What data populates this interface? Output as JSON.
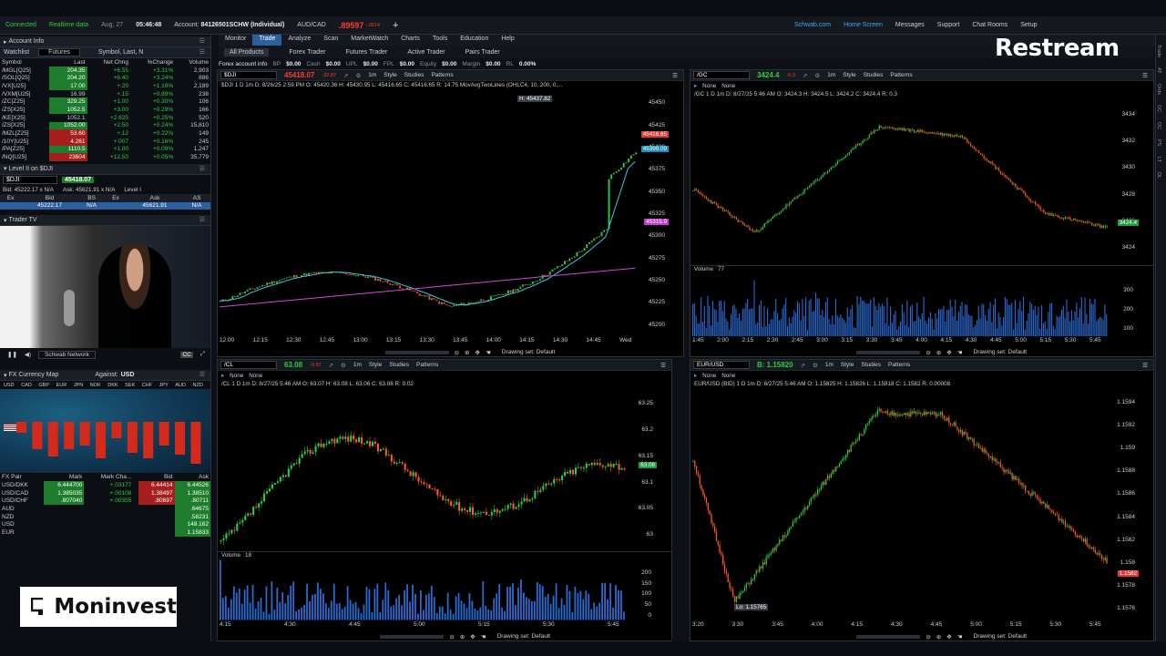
{
  "topbar": {
    "status": "Connected",
    "data_mode": "Realtime data",
    "date": "Aug, 27",
    "time": "05:46:48",
    "account_label": "Account:",
    "account": "84126501SCHW (Individual)",
    "pair": "AUD/CAD",
    "pair_price": ".89597",
    "pair_change": "-.0014",
    "links": [
      "Schwab.com",
      "Home Screen",
      "Messages",
      "Support",
      "Chat Rooms",
      "Setup"
    ],
    "ondemand": "OnDemand"
  },
  "menu": [
    "Monitor",
    "Trade",
    "Analyze",
    "Scan",
    "MarketWatch",
    "Charts",
    "Tools",
    "Education",
    "Help"
  ],
  "menu_active": "Trade",
  "subtabs": [
    "All Products",
    "Forex Trader",
    "Futures Trader",
    "Active Trader",
    "Pairs Trader"
  ],
  "forex_info": {
    "label": "Forex account info",
    "fields": [
      [
        "BP",
        "$0.00"
      ],
      [
        "Cash",
        "$0.00"
      ],
      [
        "UPL",
        "$0.00"
      ],
      [
        "FPL",
        "$0.00"
      ],
      [
        "Equity",
        "$0.00"
      ],
      [
        "Margin",
        "$0.00"
      ],
      [
        "RL",
        "0.00%"
      ]
    ]
  },
  "left": {
    "account_info": "Account Info",
    "watchlist_tab": "Watchlist",
    "watchlist_name": "Futures",
    "symbol_search": "Symbol, Last, N",
    "wl_cols": [
      "Symbol",
      "Last",
      "Net Chng",
      "%Change",
      "Volume"
    ],
    "wl_rows": [
      [
        "/MGL[Q25]",
        "204.35",
        "+6.55",
        "+3.31%",
        "2,903",
        "g"
      ],
      [
        "/SOL[Q25]",
        "204.20",
        "+6.40",
        "+3.24%",
        "886",
        "g"
      ],
      [
        "/VX[U25]",
        "17.00",
        "+.20",
        "+1.19%",
        "2,189",
        "g"
      ],
      [
        "/VXM[U25]",
        "16.99",
        "+.15",
        "+0.89%",
        "238",
        "g"
      ],
      [
        "/ZC[Z25]",
        "329.25",
        "+1.00",
        "+0.30%",
        "106",
        "g"
      ],
      [
        "/ZS[X25]",
        "1052.5",
        "+3.00",
        "+0.29%",
        "166",
        "g"
      ],
      [
        "/KE[X25]",
        "1052.1",
        "+2.625",
        "+0.25%",
        "520",
        "g"
      ],
      [
        "/ZS[X25]",
        "1052.00",
        "+2.50",
        "+0.24%",
        "15,810",
        "g"
      ],
      [
        "/MZL[Z25]",
        "53.60",
        "+.12",
        "+0.22%",
        "149",
        "r"
      ],
      [
        "/10Y[U25]",
        "4.261",
        "+.007",
        "+0.16%",
        "245",
        "r"
      ],
      [
        "/PA[Z25]",
        "1110.5",
        "+1.00",
        "+0.09%",
        "1,247",
        "g"
      ],
      [
        "/NQ[U25]",
        "23604",
        "+12.50",
        "+0.05%",
        "35,779",
        "r"
      ]
    ],
    "level2_title": "Level II on $DJI",
    "l2_symbol": "$DJI",
    "l2_price": "45418.07",
    "l2_bid": "Bid: 45222.17 x N/A",
    "l2_ask": "Ask: 45621.91 x N/A",
    "l2_level": "Level I",
    "l2_cols": [
      "Ex",
      "Bid",
      "BS",
      "Ex",
      "Ask",
      "AS"
    ],
    "l2_row": [
      "",
      "45222.17",
      "N/A",
      "",
      "45621.91",
      "N/A"
    ],
    "tv_title": "Trader TV",
    "tv_network": "Schwab Network",
    "tv_badge": "CC",
    "fx_title": "FX Currency Map",
    "fx_against_label": "Against:",
    "fx_against": "USD",
    "fx_ccy": [
      "USD",
      "CAD",
      "GBP",
      "EUR",
      "JPN",
      "NOK",
      "DKK",
      "SEK",
      "CHF",
      "JPY",
      "AUD",
      "NZD"
    ],
    "fx_cols": [
      "FX Pair",
      "Mark",
      "Mark Cha...",
      "",
      "Bid",
      "Ask"
    ],
    "fx_rows": [
      [
        "USD/DKK",
        "6.444700",
        "+.03177",
        "",
        "6.44414",
        "6.44526"
      ],
      [
        "USD/CAD",
        "1.385035",
        "+.00108",
        "",
        "1.38497",
        "1.38510"
      ],
      [
        "USD/CHF",
        ".807040",
        "+.00355",
        "",
        ".80697",
        ".80711"
      ],
      [
        "AUD",
        "",
        "",
        "",
        "",
        ".64675"
      ],
      [
        "NZD",
        "",
        "",
        "",
        "",
        ".58231"
      ],
      [
        "USD",
        "",
        "",
        "",
        "",
        "148.162"
      ],
      [
        "EUR",
        "",
        "",
        "",
        "",
        "1.15833"
      ]
    ]
  },
  "charts": {
    "dji": {
      "symbol": "$DJI",
      "price": "45418.07",
      "change": "-22.87",
      "pct": "-0.05%",
      "info": "$DJI 1 D 1m  D: 8/26/25 2:59 PM  O: 45420.36  H: 45430.95  L: 45416.65  C: 45416.65  R: 14.75  MovAvgTwoLines (OHLC4, 10, 200, 0,...",
      "high_label": "H: 45437.82",
      "yticks": [
        "45450",
        "45425",
        "45400",
        "45375",
        "45350",
        "45325",
        "45300",
        "45275",
        "45250",
        "45225",
        "45200"
      ],
      "xticks": [
        "12:00",
        "12:15",
        "12:30",
        "12:45",
        "13:00",
        "13:15",
        "13:30",
        "13:45",
        "14:00",
        "14:15",
        "14:30",
        "14:45",
        "Wed"
      ],
      "tag_last": "45416.65",
      "tag_ma1": "45399.09",
      "tag_ma2": "45315.9"
    },
    "gc": {
      "symbol": "/GC",
      "price": "3424.4",
      "change": "-0.3",
      "info": "/GC 1 D 1m  D: 8/27/25 5:46 AM  O: 3424.3  H: 3424.5  L: 3424.2  C: 3424.4  R: 0.3",
      "yticks": [
        "3434",
        "3432",
        "3430",
        "3428",
        "3426",
        "3424"
      ],
      "vol_label": "Volume",
      "vol_val": "77",
      "vol_ticks": [
        "300",
        "200",
        "100"
      ],
      "xticks": [
        "1:45",
        "2:00",
        "2:15",
        "2:30",
        "2:45",
        "3:00",
        "3:15",
        "3:30",
        "3:45",
        "4:00",
        "4:15",
        "4:30",
        "4:45",
        "5:00",
        "5:15",
        "5:30",
        "5:45"
      ],
      "tag_last": "3424.4"
    },
    "cl": {
      "symbol": "/CL",
      "price": "63.08",
      "change": "-0.37",
      "pct": "-0.58%",
      "info": "/CL 1 D 1m  D: 8/27/25 5:46 AM  O: 63.07  H: 63.08  L: 63.06  C: 63.08  R: 0.02",
      "yticks": [
        "63.25",
        "63.2",
        "63.15",
        "63.1",
        "63.05",
        "63"
      ],
      "vol_label": "Volume",
      "vol_val": "18",
      "vol_ticks": [
        "200",
        "150",
        "100",
        "50",
        "0"
      ],
      "xticks": [
        "4:15",
        "4:30",
        "4:45",
        "5:00",
        "5:15",
        "5:30",
        "5:45"
      ],
      "tag_last": "63.08"
    },
    "eur": {
      "symbol": "EUR/USD",
      "price": "B: 1.15820",
      "info": "EUR/USD (BID) 1 D 1m  D: 8/27/25 5:46 AM  O: 1.15825  H: 1.15826  L: 1.15818  C: 1.1582  R: 0.00008",
      "low_label": "Lo: 1.15765",
      "yticks": [
        "1.1594",
        "1.1592",
        "1.159",
        "1.1588",
        "1.1586",
        "1.1584",
        "1.1582",
        "1.158",
        "1.1578",
        "1.1576"
      ],
      "xticks": [
        "3:20",
        "3:30",
        "3:45",
        "4:00",
        "4:15",
        "4:30",
        "4:45",
        "5:00",
        "5:15",
        "5:30",
        "5:45"
      ],
      "tag_last": "1.1582"
    },
    "toolbar": [
      "1m",
      "Style",
      "Studies",
      "Patterns"
    ],
    "drawing_set": "Drawing set: Default",
    "none_label": "None"
  },
  "side_tabs": [
    "Trade",
    "AT",
    "Ords",
    "OC",
    "OC",
    "PS",
    "LT",
    "DL"
  ],
  "overlays": {
    "moninvest": "Moninvest",
    "restream": "Restream"
  }
}
